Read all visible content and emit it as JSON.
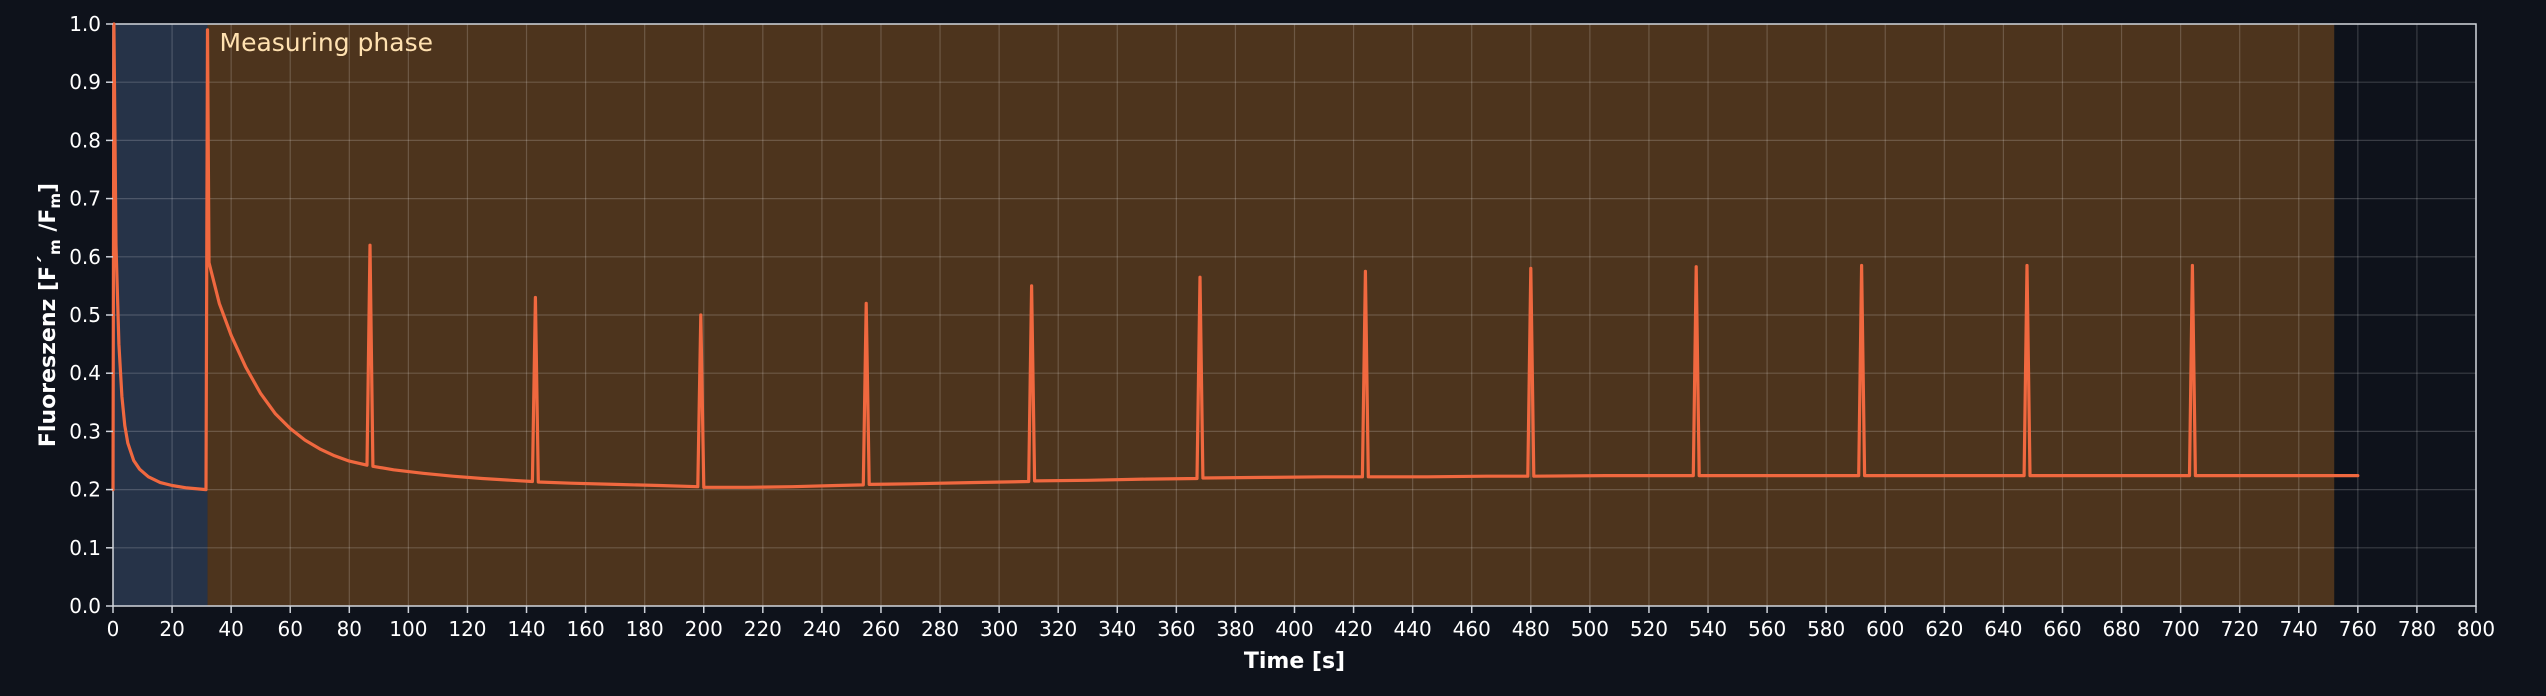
{
  "chart_data": {
    "type": "line",
    "xlabel": "Time [s]",
    "ylabel": {
      "main": "Fluoreszenz [F´",
      "sub1": "m",
      "mid": " /F",
      "sub2": "m",
      "end": "]"
    },
    "xlim": [
      0,
      800
    ],
    "ylim": [
      0,
      1
    ],
    "x_ticks": [
      0,
      20,
      40,
      60,
      80,
      100,
      120,
      140,
      160,
      180,
      200,
      220,
      240,
      260,
      280,
      300,
      320,
      340,
      360,
      380,
      400,
      420,
      440,
      460,
      480,
      500,
      520,
      540,
      560,
      580,
      600,
      620,
      640,
      660,
      680,
      700,
      720,
      740,
      760,
      780,
      800
    ],
    "y_ticks": [
      "0.0",
      "0.1",
      "0.2",
      "0.3",
      "0.4",
      "0.5",
      "0.6",
      "0.7",
      "0.8",
      "0.9",
      "1.0"
    ],
    "grid": true,
    "phases": [
      {
        "label": "",
        "start": 0,
        "end": 32,
        "color": "#263348"
      },
      {
        "label": "Measuring phase",
        "start": 32,
        "end": 752,
        "color": "#4d341d"
      }
    ],
    "series": [
      {
        "color": "#f0683f",
        "points": [
          [
            0,
            0.2
          ],
          [
            0.3,
            1.0
          ],
          [
            1,
            0.62
          ],
          [
            2,
            0.45
          ],
          [
            3,
            0.36
          ],
          [
            4,
            0.31
          ],
          [
            5,
            0.28
          ],
          [
            7,
            0.25
          ],
          [
            9,
            0.235
          ],
          [
            12,
            0.222
          ],
          [
            16,
            0.212
          ],
          [
            20,
            0.207
          ],
          [
            25,
            0.203
          ],
          [
            31.5,
            0.2
          ],
          [
            32,
            0.99
          ],
          [
            32.5,
            0.59
          ],
          [
            36,
            0.52
          ],
          [
            40,
            0.465
          ],
          [
            45,
            0.41
          ],
          [
            50,
            0.365
          ],
          [
            55,
            0.33
          ],
          [
            60,
            0.305
          ],
          [
            65,
            0.285
          ],
          [
            70,
            0.27
          ],
          [
            75,
            0.258
          ],
          [
            80,
            0.249
          ],
          [
            86,
            0.242
          ],
          [
            87,
            0.62
          ],
          [
            88,
            0.24
          ],
          [
            95,
            0.234
          ],
          [
            105,
            0.228
          ],
          [
            115,
            0.223
          ],
          [
            125,
            0.219
          ],
          [
            135,
            0.216
          ],
          [
            142,
            0.214
          ],
          [
            143,
            0.53
          ],
          [
            144,
            0.213
          ],
          [
            155,
            0.211
          ],
          [
            170,
            0.209
          ],
          [
            185,
            0.207
          ],
          [
            198,
            0.205
          ],
          [
            199,
            0.5
          ],
          [
            200,
            0.204
          ],
          [
            215,
            0.204
          ],
          [
            230,
            0.205
          ],
          [
            245,
            0.207
          ],
          [
            254,
            0.208
          ],
          [
            255,
            0.52
          ],
          [
            256,
            0.209
          ],
          [
            270,
            0.21
          ],
          [
            290,
            0.212
          ],
          [
            310,
            0.214
          ],
          [
            311,
            0.55
          ],
          [
            312,
            0.215
          ],
          [
            330,
            0.216
          ],
          [
            350,
            0.218
          ],
          [
            367,
            0.219
          ],
          [
            368,
            0.565
          ],
          [
            369,
            0.22
          ],
          [
            390,
            0.221
          ],
          [
            410,
            0.222
          ],
          [
            423,
            0.222
          ],
          [
            424,
            0.575
          ],
          [
            425,
            0.222
          ],
          [
            445,
            0.222
          ],
          [
            465,
            0.223
          ],
          [
            479,
            0.223
          ],
          [
            480,
            0.58
          ],
          [
            481,
            0.223
          ],
          [
            505,
            0.224
          ],
          [
            525,
            0.224
          ],
          [
            535,
            0.224
          ],
          [
            536,
            0.583
          ],
          [
            537,
            0.224
          ],
          [
            560,
            0.224
          ],
          [
            580,
            0.224
          ],
          [
            591,
            0.224
          ],
          [
            592,
            0.585
          ],
          [
            593,
            0.224
          ],
          [
            615,
            0.224
          ],
          [
            635,
            0.224
          ],
          [
            647,
            0.224
          ],
          [
            648,
            0.585
          ],
          [
            649,
            0.224
          ],
          [
            670,
            0.224
          ],
          [
            690,
            0.224
          ],
          [
            703,
            0.224
          ],
          [
            704,
            0.585
          ],
          [
            705,
            0.224
          ],
          [
            730,
            0.224
          ],
          [
            760,
            0.224
          ]
        ]
      }
    ]
  }
}
